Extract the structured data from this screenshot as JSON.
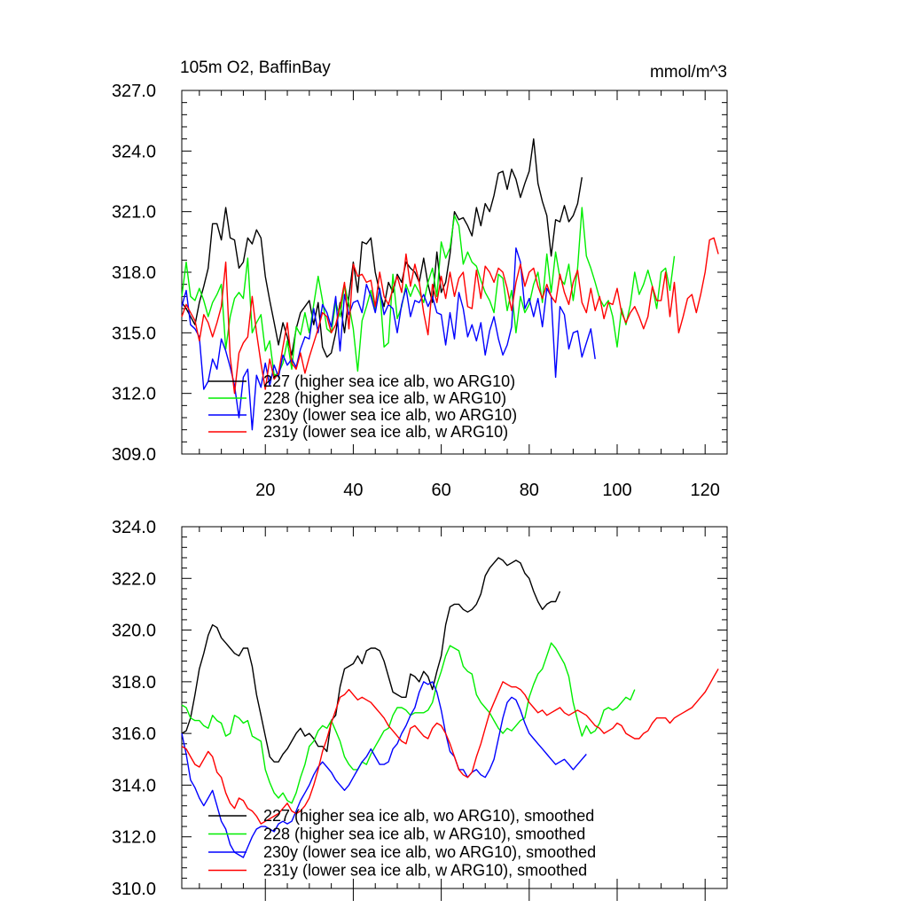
{
  "colors": {
    "227": "#000000",
    "228": "#00ee00",
    "230y": "#0000ff",
    "231y": "#ff0000"
  },
  "chart_data": [
    {
      "type": "line",
      "title": "105m O2, BaffinBay",
      "units": "mmol/m^3",
      "xlim": [
        1,
        125
      ],
      "ylim": [
        309,
        327
      ],
      "yticks": [
        "309.0",
        "312.0",
        "315.0",
        "318.0",
        "321.0",
        "324.0",
        "327.0"
      ],
      "xticks": [
        "20",
        "40",
        "60",
        "80",
        "100",
        "120"
      ],
      "legend_position": "bottom-left",
      "series": [
        {
          "name": "227 (higher sea ice alb, wo ARG10)",
          "color_key": "227",
          "x_start": 1,
          "values": [
            316.5,
            316.2,
            315.8,
            315.4,
            316.5,
            317.3,
            318.2,
            320.4,
            320.4,
            319.6,
            321.2,
            319.7,
            319.6,
            318.2,
            318.5,
            319.7,
            319.4,
            320.1,
            319.7,
            317.8,
            316.6,
            315.5,
            314.4,
            315.5,
            314.8,
            313.9,
            315.2,
            316.0,
            316.3,
            316.6,
            315.4,
            316.5,
            314.3,
            313.8,
            314.0,
            315.0,
            316.5,
            315.0,
            316.8,
            318.5,
            317.0,
            319.5,
            319.4,
            319.7,
            318.0,
            317.0,
            316.3,
            317.5,
            317.0,
            317.9,
            317.5,
            318.5,
            318.2,
            318.0,
            317.5,
            318.7,
            317.4,
            316.5,
            319.0,
            317.0,
            317.5,
            318.9,
            321.0,
            320.6,
            320.7,
            320.3,
            319.8,
            321.2,
            320.3,
            321.4,
            321.0,
            321.8,
            322.9,
            323.0,
            322.1,
            323.1,
            322.6,
            321.7,
            322.4,
            323.0,
            324.6,
            322.4,
            321.5,
            320.8,
            318.8,
            320.6,
            320.5,
            321.3,
            320.5,
            320.8,
            321.4,
            322.7
          ]
        },
        {
          "name": "228 (higher sea ice alb, w ARG10)",
          "color_key": "228",
          "x_start": 1,
          "values": [
            316.8,
            318.5,
            316.8,
            316.6,
            317.2,
            316.6,
            315.8,
            316.5,
            316.9,
            317.4,
            314.2,
            315.8,
            316.7,
            317.0,
            316.7,
            318.7,
            315.0,
            315.5,
            315.9,
            314.1,
            314.6,
            312.9,
            313.0,
            313.5,
            314.6,
            313.2,
            315.3,
            314.9,
            316.0,
            315.0,
            316.4,
            317.8,
            316.6,
            315.2,
            315.0,
            316.5,
            315.8,
            317.4,
            316.4,
            315.2,
            313.1,
            315.6,
            316.3,
            317.1,
            316.1,
            317.2,
            314.3,
            314.5,
            317.9,
            315.7,
            316.3,
            317.4,
            316.8,
            317.4,
            317.0,
            316.5,
            317.5,
            318.2,
            316.8,
            319.5,
            318.7,
            319.2,
            320.8,
            320.3,
            318.4,
            319.0,
            318.5,
            318.3,
            317.6,
            317.0,
            316.6,
            316.0,
            317.9,
            317.7,
            316.1,
            317.1,
            315.0,
            316.8,
            316.0,
            316.4,
            317.4,
            318.0,
            316.5,
            318.9,
            317.0,
            319.0,
            317.7,
            317.4,
            318.4,
            316.6,
            318.2,
            321.2,
            318.8,
            318.2,
            317.5,
            316.7,
            316.3,
            316.6,
            315.8,
            314.3,
            316.2,
            315.4,
            316.4,
            318.0,
            316.9,
            317.4,
            318.1,
            317.3,
            316.2,
            318.0,
            318.2,
            317.1,
            318.8
          ]
        },
        {
          "name": "230y (lower sea ice alb, wo ARG10)",
          "color_key": "230y",
          "x_start": 1,
          "values": [
            316.3,
            317.1,
            315.4,
            315.2,
            314.8,
            312.2,
            312.6,
            313.7,
            313.2,
            314.7,
            314.1,
            313.3,
            312.4,
            310.8,
            312.8,
            313.2,
            310.2,
            312.9,
            312.3,
            313.5,
            312.4,
            313.4,
            312.8,
            313.9,
            313.4,
            313.7,
            313.3,
            314.2,
            314.8,
            314.7,
            316.2,
            315.0,
            316.4,
            316.0,
            315.3,
            316.8,
            314.1,
            316.9,
            315.9,
            316.5,
            316.6,
            316.0,
            317.4,
            316.8,
            316.0,
            317.2,
            315.9,
            316.4,
            316.2,
            315.0,
            316.4,
            317.2,
            315.8,
            316.6,
            316.5,
            316.9,
            316.3,
            316.8,
            316.0,
            315.9,
            314.4,
            316.0,
            314.7,
            317.0,
            316.2,
            314.8,
            315.4,
            314.6,
            315.5,
            313.9,
            315.1,
            315.8,
            314.7,
            313.9,
            314.4,
            315.3,
            319.2,
            318.5,
            316.2,
            316.7,
            315.8,
            316.7,
            315.3,
            317.2,
            316.8,
            312.8,
            316.3,
            315.9,
            314.2,
            315.0,
            315.1,
            313.8,
            314.5,
            315.2,
            313.7
          ]
        },
        {
          "name": "231y (lower sea ice alb, w ARG10)",
          "color_key": "231y",
          "x_start": 1,
          "values": [
            315.8,
            316.4,
            316.0,
            315.6,
            314.6,
            315.9,
            315.5,
            314.8,
            315.5,
            316.3,
            318.5,
            313.8,
            312.0,
            314.0,
            314.5,
            314.8,
            316.8,
            315.0,
            313.5,
            312.2,
            313.7,
            312.7,
            313.0,
            314.3,
            315.5,
            313.5,
            313.2,
            314.0,
            313.0,
            313.8,
            314.5,
            315.2,
            316.0,
            315.8,
            315.0,
            315.4,
            316.3,
            317.5,
            315.2,
            318.4,
            317.8,
            317.9,
            317.5,
            317.6,
            316.3,
            318.0,
            316.8,
            316.4,
            317.2,
            317.8,
            317.0,
            318.9,
            317.3,
            318.4,
            317.5,
            316.0,
            314.9,
            317.4,
            316.5,
            317.8,
            316.7,
            318.0,
            316.8,
            317.7,
            318.0,
            316.3,
            316.2,
            318.1,
            316.7,
            318.3,
            318.0,
            317.5,
            318.2,
            318.0,
            317.2,
            316.1,
            317.5,
            318.4,
            317.3,
            318.0,
            318.2,
            317.3,
            316.7,
            317.4,
            316.8,
            316.5,
            317.9,
            317.0,
            316.4,
            317.5,
            318.1,
            316.5,
            316.0,
            317.2,
            316.1,
            316.8,
            315.7,
            316.5,
            316.4,
            317.2,
            316.0,
            315.5,
            316.0,
            316.3,
            315.8,
            315.2,
            315.8,
            317.3,
            316.6,
            316.6,
            318.0,
            315.8,
            317.5,
            315.0,
            315.8,
            316.7,
            316.9,
            316.0,
            316.9,
            318.0,
            319.6,
            319.7,
            318.9
          ]
        }
      ]
    },
    {
      "type": "line",
      "title": "",
      "xlim": [
        1,
        125
      ],
      "ylim": [
        310,
        324
      ],
      "yticks": [
        "310.0",
        "312.0",
        "314.0",
        "316.0",
        "318.0",
        "320.0",
        "322.0",
        "324.0"
      ],
      "xticks": [],
      "legend_position": "bottom-left",
      "series": [
        {
          "name": "227 (higher sea ice alb, wo ARG10), smoothed",
          "color_key": "227",
          "x_start": 1,
          "values": [
            316.0,
            316.1,
            316.6,
            317.5,
            318.5,
            319.1,
            319.8,
            320.2,
            320.1,
            319.7,
            319.5,
            319.3,
            319.1,
            319.0,
            319.3,
            319.3,
            318.6,
            317.5,
            316.7,
            315.9,
            315.1,
            314.9,
            314.9,
            315.2,
            315.4,
            315.7,
            316.0,
            316.2,
            315.9,
            316.0,
            315.8,
            315.5,
            315.5,
            315.3,
            316.5,
            316.7,
            317.8,
            318.5,
            318.6,
            318.7,
            319.0,
            318.7,
            319.2,
            319.3,
            319.3,
            319.2,
            318.8,
            318.2,
            317.6,
            317.5,
            317.4,
            317.4,
            318.3,
            318.2,
            318.0,
            318.4,
            318.2,
            317.7,
            318.4,
            319.0,
            320.2,
            320.9,
            321.0,
            321.0,
            320.8,
            320.7,
            320.8,
            321.0,
            321.4,
            322.1,
            322.4,
            322.6,
            322.8,
            322.7,
            322.5,
            322.6,
            322.7,
            322.6,
            322.2,
            322.0,
            321.5,
            321.1,
            320.8,
            321.0,
            321.1,
            321.1,
            321.5
          ]
        },
        {
          "name": "228 (higher sea ice alb, w ARG10), smoothed",
          "color_key": "228",
          "x_start": 1,
          "values": [
            317.1,
            317.0,
            316.6,
            316.5,
            316.5,
            316.3,
            316.2,
            316.7,
            316.5,
            316.4,
            315.9,
            316.0,
            316.7,
            316.6,
            316.4,
            316.5,
            315.9,
            315.8,
            315.7,
            314.6,
            314.1,
            313.7,
            313.5,
            313.7,
            313.4,
            313.3,
            313.7,
            314.3,
            314.8,
            315.5,
            315.7,
            316.1,
            316.3,
            316.2,
            316.5,
            316.1,
            315.7,
            315.1,
            314.8,
            314.6,
            314.6,
            314.9,
            314.8,
            315.2,
            315.5,
            315.8,
            316.1,
            316.2,
            316.7,
            317.0,
            317.0,
            316.9,
            316.7,
            316.8,
            316.8,
            316.8,
            316.9,
            317.2,
            317.9,
            318.4,
            319.0,
            319.4,
            319.3,
            319.2,
            318.6,
            318.4,
            318.3,
            317.5,
            317.2,
            317.0,
            316.8,
            316.5,
            316.2,
            316.0,
            316.2,
            316.1,
            316.3,
            316.5,
            316.6,
            317.4,
            317.9,
            318.3,
            318.5,
            319.0,
            319.5,
            319.3,
            319.0,
            318.7,
            318.2,
            317.2,
            316.5,
            315.9,
            316.3,
            316.0,
            316.1,
            316.4,
            316.9,
            317.0,
            316.9,
            317.0,
            317.2,
            317.4,
            317.3,
            317.7
          ]
        },
        {
          "name": "230y (lower sea ice alb, wo ARG10), smoothed",
          "color_key": "230y",
          "x_start": 1,
          "values": [
            316.0,
            315.2,
            314.2,
            313.9,
            313.5,
            313.2,
            313.5,
            313.8,
            313.2,
            312.6,
            312.3,
            311.7,
            311.4,
            311.3,
            311.2,
            311.6,
            312.0,
            312.3,
            312.4,
            312.4,
            312.3,
            312.2,
            312.5,
            312.6,
            312.5,
            312.6,
            313.0,
            313.4,
            313.7,
            314.0,
            314.4,
            314.7,
            314.9,
            314.7,
            314.5,
            314.2,
            314.0,
            313.8,
            314.0,
            314.3,
            314.6,
            314.9,
            315.1,
            315.4,
            315.1,
            314.8,
            314.8,
            314.9,
            315.4,
            315.6,
            316.0,
            316.3,
            316.7,
            317.0,
            317.6,
            318.0,
            317.9,
            318.0,
            317.6,
            316.9,
            316.0,
            315.3,
            315.1,
            314.6,
            314.6,
            314.3,
            314.5,
            314.6,
            314.4,
            314.3,
            314.6,
            315.0,
            315.8,
            316.6,
            317.2,
            317.4,
            317.3,
            316.9,
            316.4,
            316.0,
            315.8,
            315.6,
            315.4,
            315.2,
            315.0,
            314.8,
            314.9,
            315.0,
            314.8,
            314.6,
            314.8,
            315.0,
            315.2
          ]
        },
        {
          "name": "231y (lower sea ice alb, w ARG10), smoothed",
          "color_key": "231y",
          "x_start": 1,
          "values": [
            315.5,
            315.4,
            315.1,
            314.8,
            314.7,
            315.0,
            315.3,
            315.1,
            314.5,
            314.3,
            313.7,
            313.3,
            313.1,
            313.5,
            313.4,
            313.1,
            313.0,
            312.8,
            312.5,
            312.6,
            312.7,
            312.8,
            312.9,
            313.1,
            313.3,
            313.0,
            312.9,
            313.0,
            313.2,
            313.5,
            314.0,
            314.6,
            315.3,
            315.8,
            316.4,
            316.9,
            317.4,
            317.5,
            317.7,
            317.5,
            317.3,
            317.4,
            317.3,
            317.2,
            317.0,
            316.8,
            316.6,
            316.3,
            316.1,
            315.9,
            315.7,
            315.6,
            316.2,
            316.3,
            316.1,
            315.9,
            315.8,
            316.2,
            316.4,
            316.3,
            316.0,
            315.6,
            315.1,
            314.6,
            314.4,
            314.3,
            314.5,
            315.1,
            315.6,
            316.2,
            316.8,
            317.2,
            317.6,
            318.0,
            317.9,
            317.8,
            317.8,
            317.7,
            317.5,
            317.2,
            317.0,
            316.8,
            316.9,
            316.7,
            316.8,
            316.9,
            317.0,
            316.8,
            316.7,
            316.8,
            316.9,
            316.8,
            316.7,
            316.5,
            316.3,
            316.2,
            316.0,
            316.1,
            316.2,
            316.4,
            316.3,
            316.0,
            315.9,
            315.8,
            315.8,
            316.0,
            316.1,
            316.4,
            316.6,
            316.6,
            316.6,
            316.4,
            316.6,
            316.7,
            316.8,
            316.9,
            317.0,
            317.2,
            317.4,
            317.6,
            317.9,
            318.2,
            318.5
          ]
        }
      ]
    }
  ]
}
